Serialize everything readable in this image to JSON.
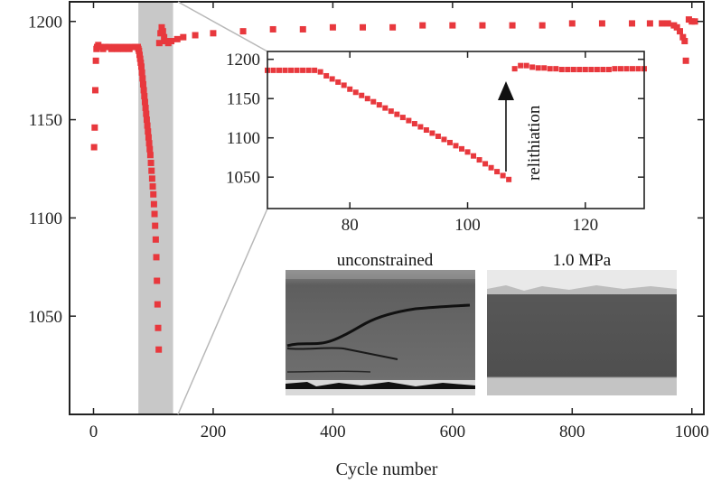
{
  "chart_data": [
    {
      "id": "main",
      "type": "scatter",
      "title": "",
      "xlabel": "Cycle number",
      "ylabel": "",
      "xlim": [
        -40,
        1020
      ],
      "ylim": [
        1000,
        1210
      ],
      "xticks": [
        0,
        200,
        400,
        600,
        800,
        1000
      ],
      "yticks": [
        1050,
        1100,
        1150,
        1200
      ],
      "grid": false,
      "highlight_range": [
        75,
        133
      ],
      "marker_color": "#e8383d",
      "series": [
        {
          "values_xy": [
            [
              1,
              1136
            ],
            [
              2,
              1146
            ],
            [
              3,
              1165
            ],
            [
              4,
              1180
            ],
            [
              5,
              1186
            ],
            [
              6,
              1187
            ],
            [
              8,
              1188
            ],
            [
              12,
              1187
            ],
            [
              16,
              1186
            ],
            [
              20,
              1187
            ],
            [
              25,
              1187
            ],
            [
              30,
              1186
            ],
            [
              35,
              1187
            ],
            [
              40,
              1186
            ],
            [
              45,
              1187
            ],
            [
              50,
              1186
            ],
            [
              55,
              1187
            ],
            [
              60,
              1186
            ],
            [
              65,
              1187
            ],
            [
              70,
              1187
            ],
            [
              74,
              1187
            ],
            [
              75,
              1186
            ],
            [
              76,
              1185
            ],
            [
              77,
              1183
            ],
            [
              78,
              1181
            ],
            [
              79,
              1179
            ],
            [
              80,
              1177
            ],
            [
              81,
              1174
            ],
            [
              82,
              1171
            ],
            [
              83,
              1168
            ],
            [
              84,
              1165
            ],
            [
              85,
              1162
            ],
            [
              86,
              1159
            ],
            [
              87,
              1156
            ],
            [
              88,
              1153
            ],
            [
              89,
              1150
            ],
            [
              90,
              1147
            ],
            [
              91,
              1144
            ],
            [
              92,
              1141
            ],
            [
              93,
              1138
            ],
            [
              94,
              1135
            ],
            [
              95,
              1132
            ],
            [
              96,
              1128
            ],
            [
              97,
              1124
            ],
            [
              98,
              1120
            ],
            [
              99,
              1116
            ],
            [
              100,
              1112
            ],
            [
              101,
              1107
            ],
            [
              102,
              1102
            ],
            [
              103,
              1096
            ],
            [
              104,
              1089
            ],
            [
              105,
              1080
            ],
            [
              106,
              1068
            ],
            [
              107,
              1056
            ],
            [
              108,
              1044
            ],
            [
              109,
              1033
            ],
            [
              110,
              1189
            ],
            [
              112,
              1194
            ],
            [
              114,
              1197
            ],
            [
              116,
              1195
            ],
            [
              118,
              1192
            ],
            [
              120,
              1190
            ],
            [
              125,
              1189
            ],
            [
              130,
              1190
            ],
            [
              140,
              1191
            ],
            [
              150,
              1192
            ],
            [
              170,
              1193
            ],
            [
              200,
              1194
            ],
            [
              250,
              1195
            ],
            [
              300,
              1196
            ],
            [
              350,
              1196
            ],
            [
              400,
              1197
            ],
            [
              450,
              1197
            ],
            [
              500,
              1197
            ],
            [
              550,
              1198
            ],
            [
              600,
              1198
            ],
            [
              650,
              1198
            ],
            [
              700,
              1198
            ],
            [
              750,
              1198
            ],
            [
              800,
              1199
            ],
            [
              850,
              1199
            ],
            [
              900,
              1199
            ],
            [
              930,
              1199
            ],
            [
              950,
              1199
            ],
            [
              960,
              1199
            ],
            [
              970,
              1198
            ],
            [
              975,
              1197
            ],
            [
              980,
              1195
            ],
            [
              985,
              1192
            ],
            [
              988,
              1190
            ],
            [
              990,
              1180
            ],
            [
              995,
              1201
            ],
            [
              1000,
              1200
            ],
            [
              1005,
              1200
            ]
          ]
        }
      ]
    },
    {
      "id": "inset",
      "type": "scatter",
      "title": "",
      "xlabel": "",
      "ylabel": "",
      "xlim": [
        66,
        130
      ],
      "ylim": [
        1010,
        1210
      ],
      "xticks": [
        80,
        100,
        120
      ],
      "yticks": [
        1050,
        1100,
        1150,
        1200
      ],
      "grid": false,
      "marker_color": "#e8383d",
      "annotations": [
        {
          "text": "relithiation",
          "x": 109.5,
          "y_from": 1045,
          "y_to": 1190
        }
      ],
      "series": [
        {
          "values_xy": [
            [
              66,
              1186
            ],
            [
              67,
              1186
            ],
            [
              68,
              1186
            ],
            [
              69,
              1186
            ],
            [
              70,
              1186
            ],
            [
              71,
              1186
            ],
            [
              72,
              1186
            ],
            [
              73,
              1186
            ],
            [
              74,
              1186
            ],
            [
              75,
              1184
            ],
            [
              76,
              1179
            ],
            [
              77,
              1175
            ],
            [
              78,
              1171
            ],
            [
              79,
              1167
            ],
            [
              80,
              1162
            ],
            [
              81,
              1158
            ],
            [
              82,
              1154
            ],
            [
              83,
              1150
            ],
            [
              84,
              1146
            ],
            [
              85,
              1142
            ],
            [
              86,
              1138
            ],
            [
              87,
              1134
            ],
            [
              88,
              1130
            ],
            [
              89,
              1126
            ],
            [
              90,
              1122
            ],
            [
              91,
              1118
            ],
            [
              92,
              1114
            ],
            [
              93,
              1110
            ],
            [
              94,
              1106
            ],
            [
              95,
              1102
            ],
            [
              96,
              1098
            ],
            [
              97,
              1094
            ],
            [
              98,
              1090
            ],
            [
              99,
              1086
            ],
            [
              100,
              1082
            ],
            [
              101,
              1077
            ],
            [
              102,
              1072
            ],
            [
              103,
              1067
            ],
            [
              104,
              1062
            ],
            [
              105,
              1057
            ],
            [
              106,
              1052
            ],
            [
              107,
              1047
            ],
            [
              108,
              1188
            ],
            [
              109,
              1192
            ],
            [
              110,
              1192
            ],
            [
              111,
              1190
            ],
            [
              112,
              1189
            ],
            [
              113,
              1189
            ],
            [
              114,
              1188
            ],
            [
              115,
              1188
            ],
            [
              116,
              1187
            ],
            [
              117,
              1187
            ],
            [
              118,
              1187
            ],
            [
              119,
              1187
            ],
            [
              120,
              1187
            ],
            [
              121,
              1187
            ],
            [
              122,
              1187
            ],
            [
              123,
              1187
            ],
            [
              124,
              1187
            ],
            [
              125,
              1188
            ],
            [
              126,
              1188
            ],
            [
              127,
              1188
            ],
            [
              128,
              1188
            ],
            [
              129,
              1188
            ],
            [
              130,
              1188
            ]
          ]
        }
      ]
    }
  ],
  "micrographs": {
    "left_label": "unconstrained",
    "right_label": "1.0 MPa"
  }
}
